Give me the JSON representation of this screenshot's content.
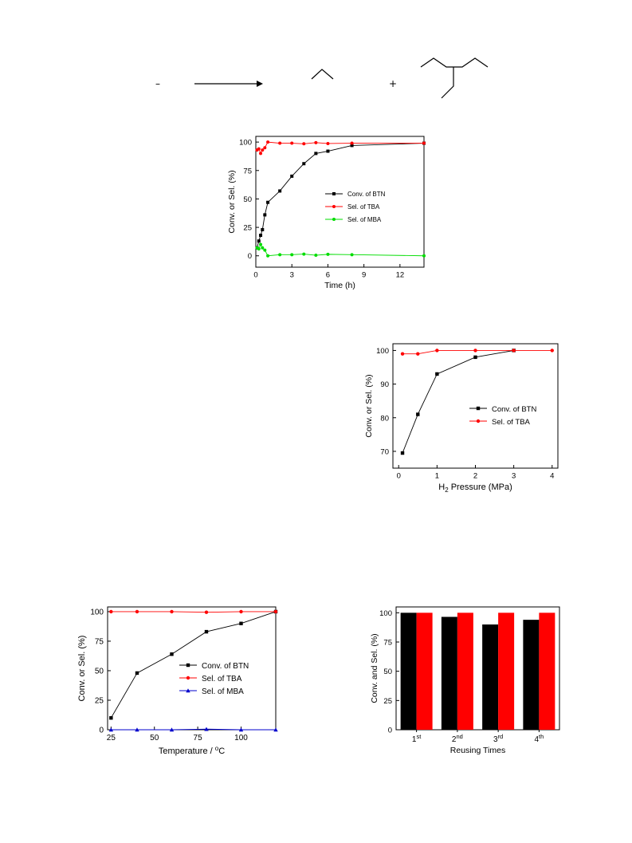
{
  "scheme": {
    "minus_sign": "–",
    "plus_sign": "+"
  },
  "chart_data": [
    {
      "type": "line",
      "xlabel": "Time (h)",
      "ylabel": "Conv. or Sel. (%)",
      "xlim": [
        0,
        14
      ],
      "ylim": [
        -10,
        105
      ],
      "xticks": [
        0,
        3,
        6,
        9,
        12
      ],
      "yticks": [
        0,
        25,
        50,
        75,
        100
      ],
      "legend_position": "right",
      "series": [
        {
          "name": "Conv. of BTN",
          "color": "#000000",
          "marker": "square",
          "x": [
            0.1,
            0.25,
            0.4,
            0.55,
            0.75,
            1,
            2,
            3,
            4,
            5,
            6,
            8,
            14
          ],
          "y": [
            7,
            13,
            18,
            23,
            36,
            47,
            57,
            70,
            81,
            90,
            92,
            97,
            99
          ]
        },
        {
          "name": "Sel. of TBA",
          "color": "#ff0000",
          "marker": "circle",
          "x": [
            0.1,
            0.25,
            0.4,
            0.55,
            0.75,
            1,
            2,
            3,
            4,
            5,
            6,
            8,
            14
          ],
          "y": [
            93,
            94,
            90,
            93,
            95,
            100,
            99,
            99,
            98.5,
            99.5,
            98.7,
            99,
            99
          ]
        },
        {
          "name": "Sel. of MBA",
          "color": "#00dd00",
          "marker": "circle",
          "x": [
            0.1,
            0.25,
            0.4,
            0.55,
            0.75,
            1,
            2,
            3,
            4,
            5,
            6,
            8,
            14
          ],
          "y": [
            7,
            6,
            10,
            7,
            5,
            0,
            1,
            1,
            1.5,
            0.5,
            1.3,
            1,
            0
          ]
        }
      ]
    },
    {
      "type": "line",
      "xlabel_main": "H",
      "xlabel_sub": "2",
      "xlabel_rest": " Pressure (MPa)",
      "ylabel": "Conv. or Sel. (%)",
      "xlim": [
        -0.15,
        4.15
      ],
      "ylim": [
        65,
        102
      ],
      "xticks": [
        0,
        1,
        2,
        3,
        4
      ],
      "yticks": [
        70,
        80,
        90,
        100
      ],
      "legend_position": "center-right",
      "series": [
        {
          "name": "Conv. of BTN",
          "color": "#000000",
          "marker": "square",
          "x": [
            0.1,
            0.5,
            1,
            2,
            3
          ],
          "y": [
            69.5,
            81,
            93,
            98,
            100
          ]
        },
        {
          "name": "Sel. of  TBA",
          "color": "#ff0000",
          "marker": "circle",
          "x": [
            0.1,
            0.5,
            1,
            2,
            3,
            4
          ],
          "y": [
            99,
            99,
            100,
            100,
            100,
            100
          ]
        }
      ]
    },
    {
      "type": "line",
      "xlabel_main": "Temperature / ",
      "xlabel_sup": "o",
      "xlabel_rest": "C",
      "ylabel": "Conv. or Sel. (%)",
      "xlim": [
        23,
        120
      ],
      "ylim": [
        0,
        104
      ],
      "xticks": [
        25,
        50,
        75,
        100
      ],
      "yticks": [
        0,
        25,
        50,
        75,
        100
      ],
      "legend_position": "center-right",
      "series": [
        {
          "name": "Conv. of BTN",
          "color": "#000000",
          "marker": "square",
          "x": [
            25,
            40,
            60,
            80,
            100,
            120
          ],
          "y": [
            10,
            48,
            64,
            83,
            90,
            100
          ]
        },
        {
          "name": "Sel. of  TBA",
          "color": "#ff0000",
          "marker": "circle",
          "x": [
            25,
            40,
            60,
            80,
            100,
            120
          ],
          "y": [
            100,
            100,
            100,
            99.5,
            100,
            100
          ]
        },
        {
          "name": "Sel. of MBA",
          "color": "#0000cc",
          "marker": "triangle",
          "x": [
            25,
            40,
            60,
            80,
            100,
            120
          ],
          "y": [
            0,
            0,
            0,
            0.5,
            0,
            0
          ]
        }
      ]
    },
    {
      "type": "bar",
      "xlabel": "Reusing Times",
      "ylabel": "Conv. and Sel. (%)",
      "ylim": [
        0,
        105
      ],
      "yticks": [
        0,
        25,
        50,
        75,
        100
      ],
      "categories": [
        {
          "num": "1",
          "sup": "st"
        },
        {
          "num": "2",
          "sup": "nd"
        },
        {
          "num": "3",
          "sup": "rd"
        },
        {
          "num": "4",
          "sup": "th"
        }
      ],
      "series": [
        {
          "color": "#000000",
          "values": [
            100,
            96.5,
            90,
            94
          ]
        },
        {
          "color": "#ff0000",
          "values": [
            100,
            100,
            100,
            100
          ]
        }
      ]
    }
  ]
}
